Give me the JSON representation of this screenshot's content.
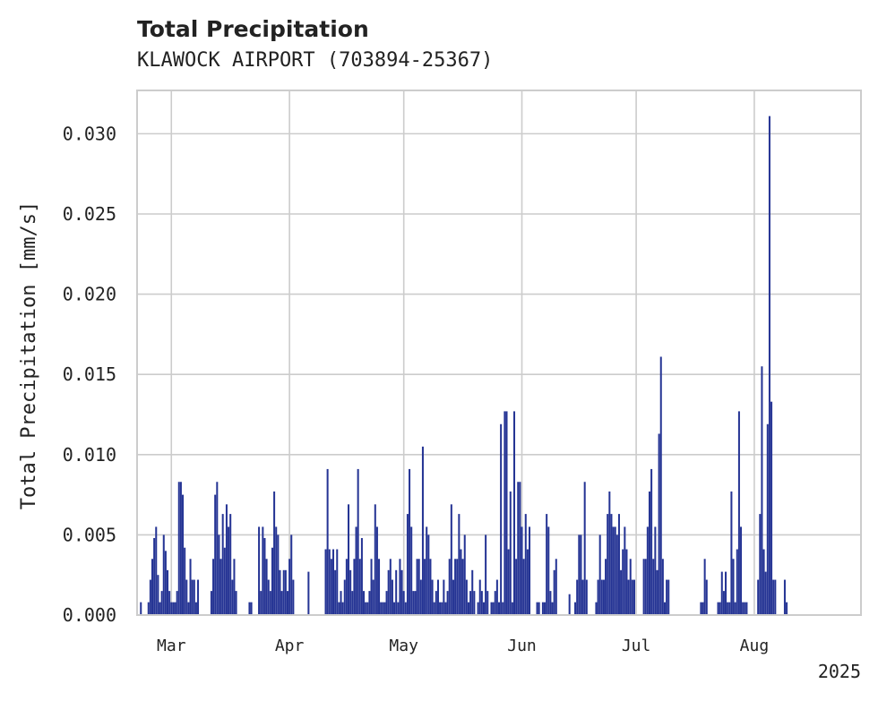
{
  "chart_data": {
    "type": "bar",
    "title": "Total Precipitation",
    "subtitle": "KLAWOCK AIRPORT (703894-25367)",
    "xlabel": "",
    "ylabel": "Total Precipitation [mm/s]",
    "year_label": "2025",
    "x_start": "2025-02-20",
    "x_end": "2025-08-29",
    "ylim": [
      0,
      0.0327
    ],
    "yticks": [
      0,
      0.005,
      0.01,
      0.015,
      0.02,
      0.025,
      0.03
    ],
    "ytick_labels": [
      "0.000",
      "0.005",
      "0.010",
      "0.015",
      "0.020",
      "0.025",
      "0.030"
    ],
    "xticks": [
      {
        "date": "2025-03-01",
        "label": "Mar"
      },
      {
        "date": "2025-04-01",
        "label": "Apr"
      },
      {
        "date": "2025-05-01",
        "label": "May"
      },
      {
        "date": "2025-06-01",
        "label": "Jun"
      },
      {
        "date": "2025-07-01",
        "label": "Jul"
      },
      {
        "date": "2025-08-01",
        "label": "Aug"
      }
    ],
    "bar_color": "#253494",
    "series": [
      {
        "name": "Total Precipitation",
        "start": "2025-02-21",
        "step_hours": 12,
        "values": [
          0.0008,
          0,
          0,
          0,
          0.0008,
          0.0022,
          0.0035,
          0.0048,
          0.0055,
          0.0025,
          0.0008,
          0.0015,
          0.005,
          0.004,
          0.0028,
          0.0015,
          0.0008,
          0.0008,
          0.0008,
          0.0015,
          0.0083,
          0.0083,
          0.0075,
          0.0042,
          0.0022,
          0.0008,
          0.0035,
          0.0022,
          0.0022,
          0.0008,
          0.0022,
          0,
          0,
          0,
          0,
          0,
          0,
          0.0015,
          0.0035,
          0.0075,
          0.0083,
          0.005,
          0.0035,
          0.0063,
          0.0042,
          0.0069,
          0.0055,
          0.0063,
          0.0022,
          0.0035,
          0.0015,
          0,
          0,
          0,
          0,
          0,
          0,
          0.0008,
          0.0008,
          0,
          0,
          0,
          0.0055,
          0.0015,
          0.0055,
          0.0048,
          0.0035,
          0.0022,
          0.0015,
          0.0042,
          0.0077,
          0.0055,
          0.005,
          0.0028,
          0.0015,
          0.0028,
          0.0028,
          0.0015,
          0.0035,
          0.005,
          0.0022,
          0,
          0,
          0,
          0,
          0,
          0,
          0,
          0.0027,
          0,
          0,
          0,
          0,
          0,
          0,
          0,
          0,
          0.0041,
          0.0091,
          0.0041,
          0.0035,
          0.0041,
          0.0028,
          0.0041,
          0.0008,
          0.0015,
          0.0008,
          0.0022,
          0.0035,
          0.0069,
          0.0028,
          0.0015,
          0.0035,
          0.0055,
          0.0091,
          0.0035,
          0.0048,
          0.0015,
          0.0008,
          0.0008,
          0.0015,
          0.0035,
          0.0022,
          0.0069,
          0.0055,
          0.0035,
          0.0008,
          0.0008,
          0.0008,
          0.0015,
          0.0028,
          0.0035,
          0.0022,
          0.0008,
          0.0028,
          0.0008,
          0.0035,
          0.0028,
          0.0015,
          0.0008,
          0.0063,
          0.0091,
          0.0055,
          0.0015,
          0.0015,
          0.0035,
          0.0035,
          0.0022,
          0.0105,
          0.0035,
          0.0055,
          0.005,
          0.0035,
          0.0022,
          0.0008,
          0.0015,
          0.0022,
          0.0008,
          0.0008,
          0.0022,
          0.0008,
          0.0015,
          0.0035,
          0.0069,
          0.0022,
          0.0035,
          0.0035,
          0.0063,
          0.0041,
          0.0035,
          0.005,
          0.0022,
          0.0008,
          0.0015,
          0.0028,
          0.0015,
          0,
          0.0008,
          0.0022,
          0.0015,
          0.0008,
          0.005,
          0.0015,
          0,
          0.0008,
          0.0008,
          0.0015,
          0.0022,
          0.0008,
          0.0119,
          0.0008,
          0.0127,
          0.0127,
          0.0041,
          0.0077,
          0.0008,
          0.0127,
          0.0035,
          0.0083,
          0.0083,
          0.0055,
          0.0035,
          0.0063,
          0.0041,
          0.0055,
          0,
          0,
          0,
          0.0008,
          0.0008,
          0,
          0.0008,
          0.0008,
          0.0063,
          0.0055,
          0.0015,
          0.0008,
          0.0028,
          0.0035,
          0,
          0,
          0,
          0,
          0,
          0,
          0.0013,
          0,
          0,
          0.0008,
          0.0022,
          0.005,
          0.005,
          0.0022,
          0.0083,
          0.0022,
          0,
          0,
          0,
          0,
          0.0008,
          0.0022,
          0.005,
          0.0022,
          0.0022,
          0.0035,
          0.0063,
          0.0077,
          0.0063,
          0.0055,
          0.0055,
          0.005,
          0.0063,
          0.0028,
          0.0041,
          0.0055,
          0.0041,
          0.0022,
          0.0035,
          0.0022,
          0.0022,
          0,
          0,
          0,
          0,
          0.0035,
          0.0035,
          0.0055,
          0.0077,
          0.0091,
          0.0035,
          0.0055,
          0.0028,
          0.0113,
          0.0161,
          0.0035,
          0.0008,
          0.0022,
          0.0022,
          0,
          0,
          0,
          0,
          0,
          0,
          0,
          0,
          0,
          0,
          0,
          0,
          0,
          0,
          0,
          0,
          0.0008,
          0.0008,
          0.0035,
          0.0022,
          0,
          0,
          0,
          0,
          0,
          0.0008,
          0.0008,
          0.0027,
          0.0015,
          0.0027,
          0.0008,
          0.0008,
          0.0077,
          0.0035,
          0.0008,
          0.0041,
          0.0127,
          0.0055,
          0.0008,
          0.0008,
          0.0008,
          0,
          0,
          0,
          0,
          0,
          0.0022,
          0.0063,
          0.0155,
          0.0041,
          0.0027,
          0.0119,
          0.0311,
          0.0133,
          0.0022,
          0.0022,
          0,
          0,
          0,
          0,
          0.0022,
          0.0008
        ]
      }
    ]
  }
}
